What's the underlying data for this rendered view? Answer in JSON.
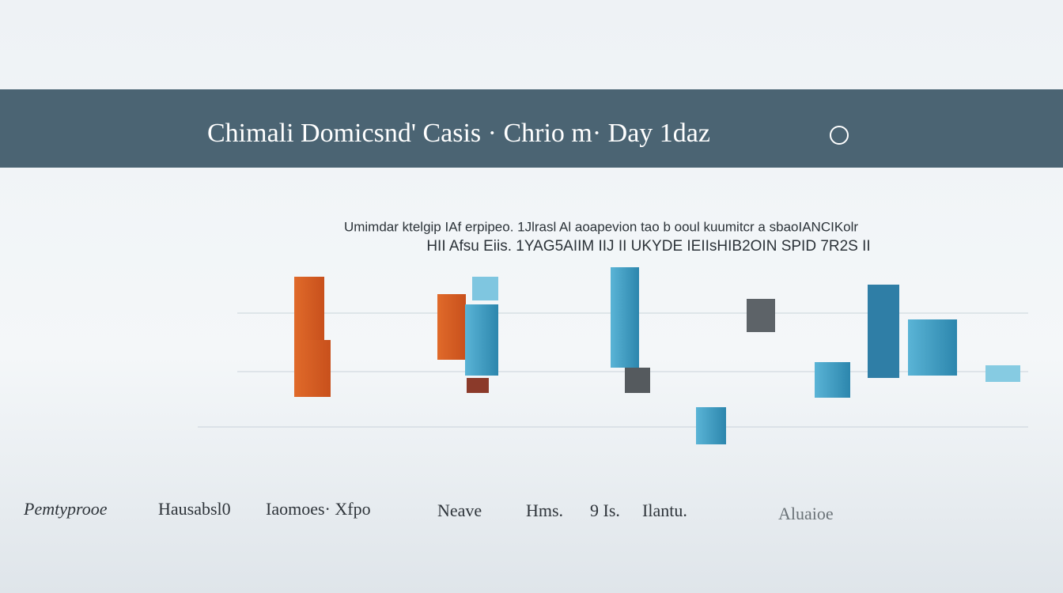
{
  "header": {
    "title": "Chimali Domicsnd' Casis · Chrio m· Day 1daz"
  },
  "caption": {
    "line1": "Umimdar ktelgip IAf erpipeo. 1Jlrasl Al aoapevion tao b ooul kuumitcr a sbaoIANCIKolr",
    "line2": "HII Afsu Eiis. 1YAG5AIIM IIJ II UKYDE IEIIsHIB2OIN SPID 7R2S II"
  },
  "footer": {
    "labels": [
      "Pemtyprooe",
      "Hausabsl0",
      "Iaomoes· Xfpo",
      "Neave",
      "Hms.",
      "9 Is.",
      "Ilantu.",
      "Aluaioe"
    ]
  }
}
